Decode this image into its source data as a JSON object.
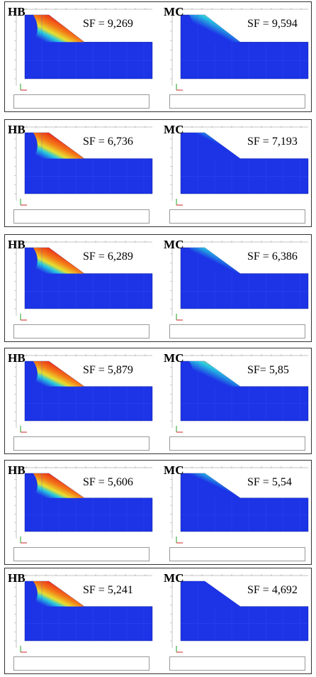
{
  "rows": [
    {
      "left": {
        "label": "HB",
        "sf": "SF = 9,269",
        "red": 0.92
      },
      "right": {
        "label": "MC",
        "sf": "SF = 9,594",
        "red": 0.55
      }
    },
    {
      "left": {
        "label": "HB",
        "sf": "SF = 6,736",
        "red": 0.95
      },
      "right": {
        "label": "MC",
        "sf": "SF = 7,193",
        "red": 0.3
      }
    },
    {
      "left": {
        "label": "HB",
        "sf": "SF = 6,289",
        "red": 0.92
      },
      "right": {
        "label": "MC",
        "sf": "SF = 6,386",
        "red": 0.45
      }
    },
    {
      "left": {
        "label": "HB",
        "sf": "SF = 5,879",
        "red": 0.92
      },
      "right": {
        "label": "MC",
        "sf": "SF=  5,85",
        "red": 0.6
      }
    },
    {
      "left": {
        "label": "HB",
        "sf": "SF = 5,606",
        "red": 0.92
      },
      "right": {
        "label": "MC",
        "sf": "SF = 5,54",
        "red": 0.4
      }
    },
    {
      "left": {
        "label": "HB",
        "sf": "SF = 5,241",
        "red": 0.92
      },
      "right": {
        "label": "MC",
        "sf": "SF = 4,692",
        "red": 0.15
      }
    }
  ],
  "colors": {
    "mesh_blue": "#1c34e6",
    "hot_red": "#e8281a",
    "orange": "#f47a18",
    "yellow": "#e8e030",
    "cyan": "#28c8e0"
  }
}
